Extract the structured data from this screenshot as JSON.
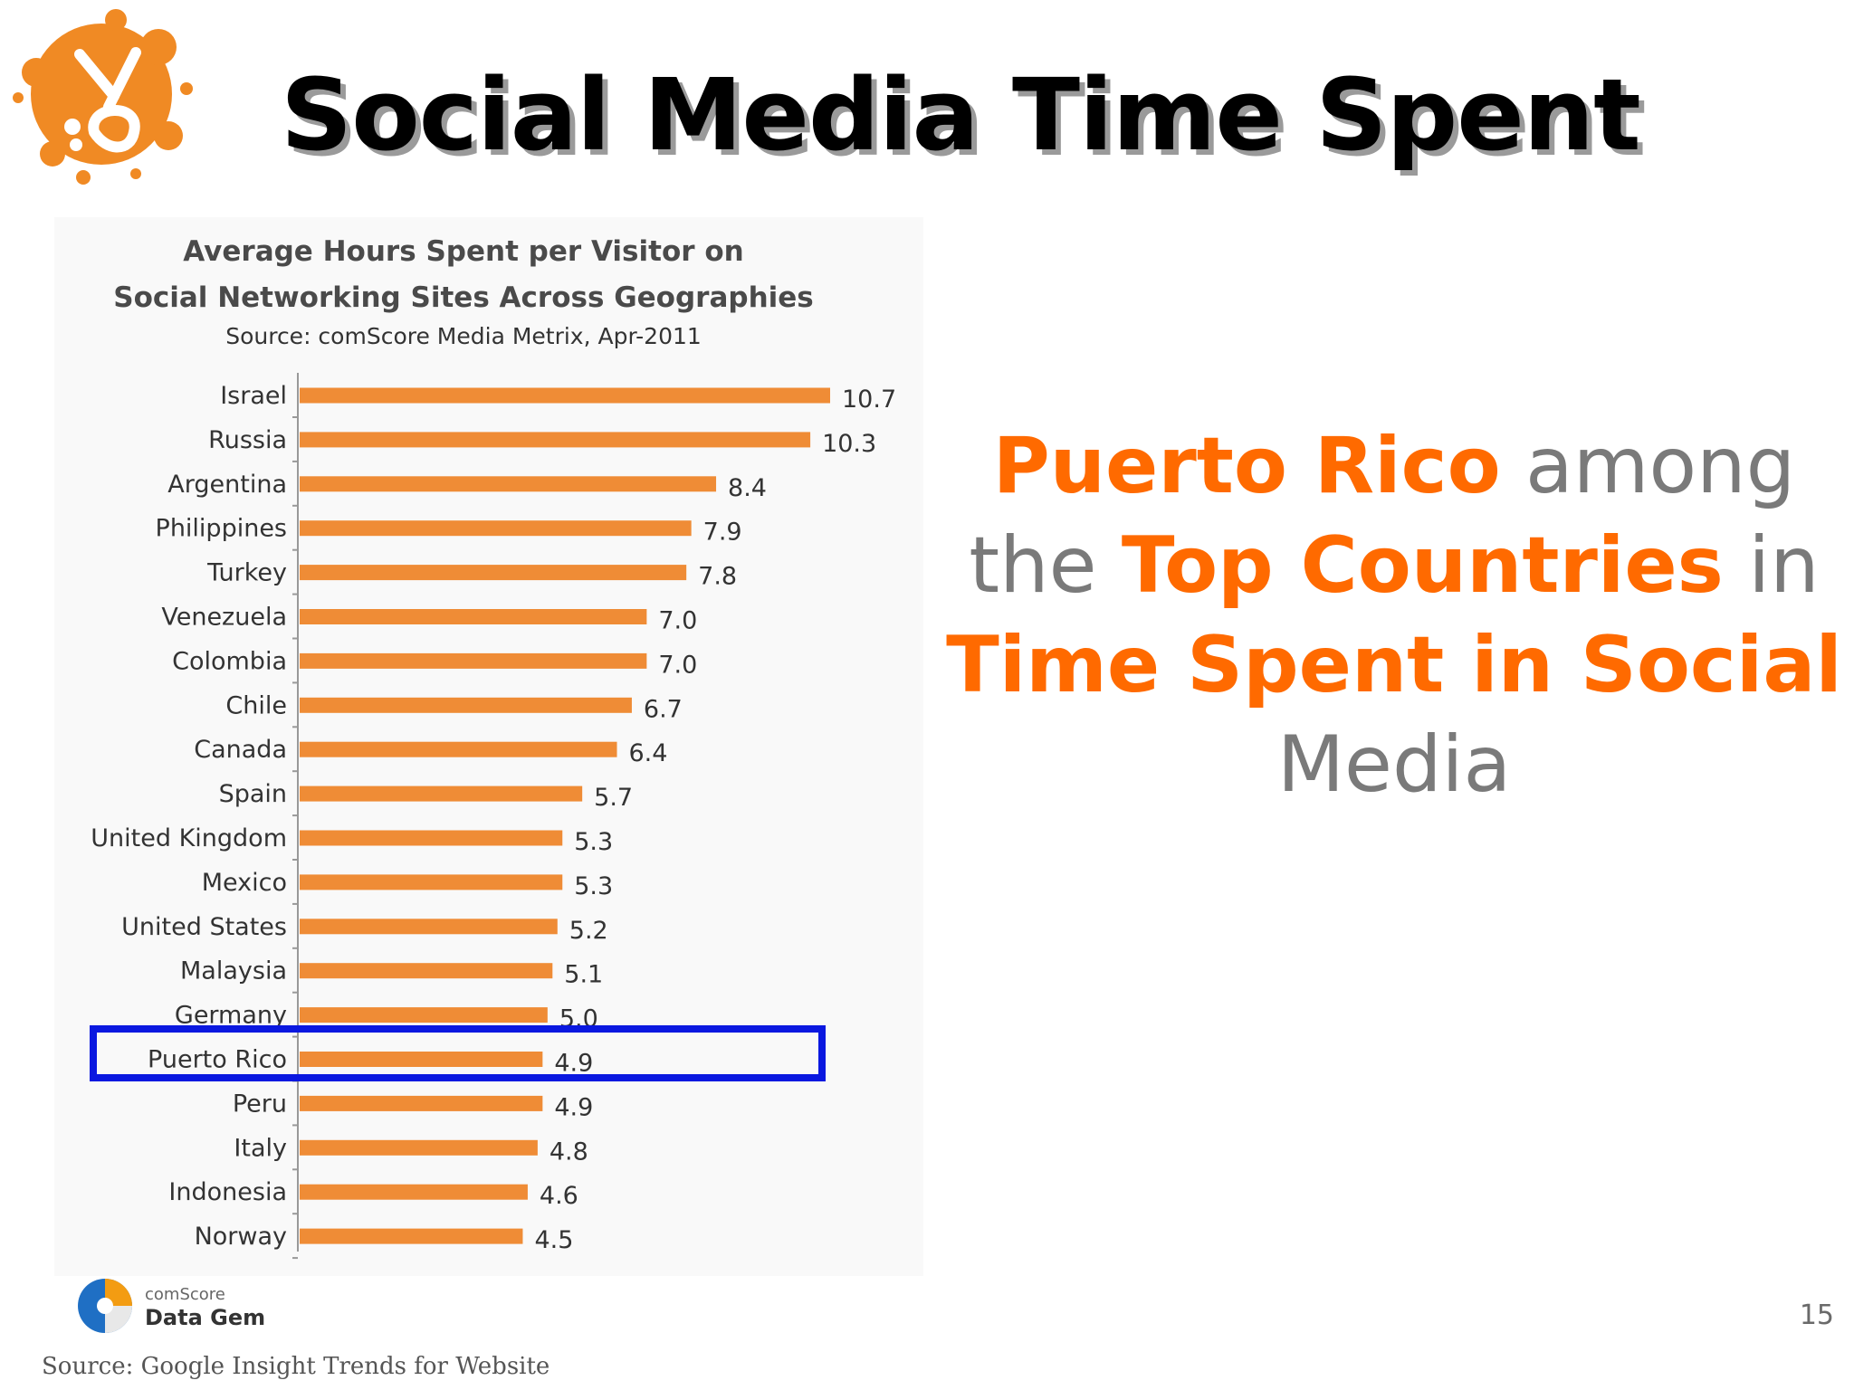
{
  "slide": {
    "title": "Social Media Time Spent",
    "logo_icon": "orange-splash-logo",
    "page_number": "15",
    "source_note": "Source: Google Insight Trends for Website"
  },
  "callout": {
    "part1": "Puerto Rico",
    "part2": " among the ",
    "part3": "Top Countries",
    "part4": " in ",
    "part5": "Time Spent in Social",
    "part6": " Media"
  },
  "branding": {
    "comscore_small": "comScore",
    "comscore_product": "Data Gem"
  },
  "colors": {
    "bar": "#ef8c36",
    "highlight_text": "#ff6a00",
    "highlight_box": "#0a18e0",
    "body_text": "#7a7a7a"
  },
  "chart_data": {
    "type": "bar",
    "orientation": "horizontal",
    "title": "Average Hours Spent per Visitor on",
    "title_line2": "Social Networking Sites Across Geographies",
    "subtitle": "Source: comScore Media Metrix, Apr-2011",
    "categories": [
      "Israel",
      "Russia",
      "Argentina",
      "Philippines",
      "Turkey",
      "Venezuela",
      "Colombia",
      "Chile",
      "Canada",
      "Spain",
      "United Kingdom",
      "Mexico",
      "United States",
      "Malaysia",
      "Germany",
      "Puerto Rico",
      "Peru",
      "Italy",
      "Indonesia",
      "Norway"
    ],
    "values": [
      10.7,
      10.3,
      8.4,
      7.9,
      7.8,
      7.0,
      7.0,
      6.7,
      6.4,
      5.7,
      5.3,
      5.3,
      5.2,
      5.1,
      5.0,
      4.9,
      4.9,
      4.8,
      4.6,
      4.5
    ],
    "value_labels": [
      "10.7",
      "10.3",
      "8.4",
      "7.9",
      "7.8",
      "7.0",
      "7.0",
      "6.7",
      "6.4",
      "5.7",
      "5.3",
      "5.3",
      "5.2",
      "5.1",
      "5.0",
      "4.9",
      "4.9",
      "4.8",
      "4.6",
      "4.5"
    ],
    "highlighted_category": "Puerto Rico",
    "xlim": [
      0,
      10.7
    ],
    "grid": false,
    "legend": "none"
  }
}
